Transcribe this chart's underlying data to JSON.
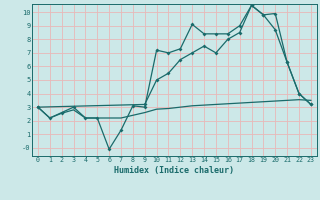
{
  "xlabel": "Humidex (Indice chaleur)",
  "bg_color": "#cce8e8",
  "grid_color": "#e8b8b8",
  "line_color": "#1a6b6b",
  "xlim": [
    -0.5,
    23.5
  ],
  "ylim": [
    -0.6,
    10.6
  ],
  "xticks": [
    0,
    1,
    2,
    3,
    4,
    5,
    6,
    7,
    8,
    9,
    10,
    11,
    12,
    13,
    14,
    15,
    16,
    17,
    18,
    19,
    20,
    21,
    22,
    23
  ],
  "yticks": [
    0,
    1,
    2,
    3,
    4,
    5,
    6,
    7,
    8,
    9,
    10
  ],
  "ytick_labels": [
    "-0",
    "1",
    "2",
    "3",
    "4",
    "5",
    "6",
    "7",
    "8",
    "9",
    "10"
  ],
  "series_zigzag_x": [
    0,
    1,
    2,
    3,
    4,
    5,
    6,
    7,
    8,
    9,
    10,
    11,
    12,
    13,
    14,
    15,
    16,
    17,
    18,
    19,
    20,
    21,
    22,
    23
  ],
  "series_zigzag_y": [
    3.0,
    2.2,
    2.6,
    3.0,
    2.2,
    2.2,
    -0.1,
    1.3,
    3.1,
    3.0,
    7.2,
    7.0,
    7.3,
    9.1,
    8.4,
    8.4,
    8.4,
    9.0,
    10.5,
    9.8,
    8.7,
    6.3,
    4.0,
    3.2
  ],
  "series_smooth_x": [
    0,
    9,
    10,
    11,
    12,
    13,
    14,
    15,
    16,
    17,
    18,
    19,
    20,
    21,
    22,
    23
  ],
  "series_smooth_y": [
    3.0,
    3.2,
    5.0,
    5.5,
    6.5,
    7.0,
    7.5,
    7.0,
    8.0,
    8.5,
    10.5,
    9.8,
    9.9,
    6.3,
    4.0,
    3.2
  ],
  "series_flat_x": [
    0,
    1,
    2,
    3,
    4,
    5,
    6,
    7,
    8,
    9,
    10,
    11,
    12,
    13,
    14,
    15,
    16,
    17,
    18,
    19,
    20,
    21,
    22,
    23
  ],
  "series_flat_y": [
    3.0,
    2.2,
    2.55,
    2.8,
    2.2,
    2.2,
    2.2,
    2.2,
    2.4,
    2.6,
    2.85,
    2.9,
    3.0,
    3.1,
    3.15,
    3.2,
    3.25,
    3.3,
    3.35,
    3.4,
    3.45,
    3.5,
    3.55,
    3.5
  ]
}
